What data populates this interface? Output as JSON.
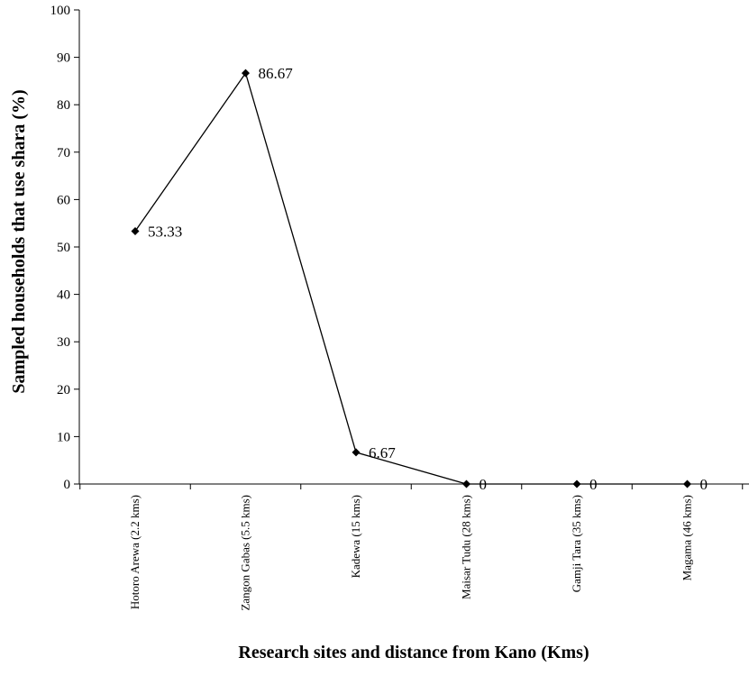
{
  "chart_data": {
    "type": "line",
    "title": "",
    "xlabel": "Research sites and distance from Kano (Kms)",
    "ylabel": "Sampled households that use shara (%)",
    "categories": [
      "Hotoro Arewa (2.2 kms)",
      "Zangon Gabas (5.5 kms)",
      "Kadewa (15 kms)",
      "Maisar Tudu (28 kms)",
      "Gamji Tara (35 kms)",
      "Magama (46 kms)"
    ],
    "values": [
      53.33,
      86.67,
      6.67,
      0,
      0,
      0
    ],
    "data_labels": [
      "53.33",
      "86.67",
      "6.67",
      "0",
      "0",
      "0"
    ],
    "ylim": [
      0,
      100
    ],
    "yticks": [
      0,
      10,
      20,
      30,
      40,
      50,
      60,
      70,
      80,
      90,
      100
    ],
    "marker": "diamond",
    "line_color": "#000000",
    "grid": false,
    "legend": "none"
  }
}
